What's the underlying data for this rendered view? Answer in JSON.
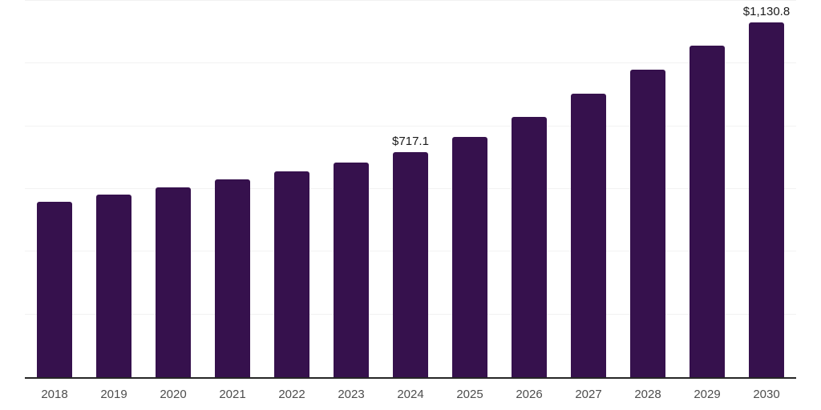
{
  "chart_data": {
    "type": "bar",
    "title": "",
    "xlabel": "",
    "ylabel": "",
    "categories": [
      "2018",
      "2019",
      "2020",
      "2021",
      "2022",
      "2023",
      "2024",
      "2025",
      "2026",
      "2027",
      "2028",
      "2029",
      "2030"
    ],
    "values": [
      558,
      581,
      605,
      630,
      656,
      684,
      717.1,
      765,
      831,
      903,
      981,
      1057,
      1130.8
    ],
    "data_labels": {
      "2024": "$717.1",
      "2030": "$1,130.8"
    },
    "ylim": [
      0,
      1200
    ],
    "gridline_step": 200,
    "grid": true,
    "y_axis_tick_labels_visible": false,
    "legend_position": "none"
  },
  "style": {
    "background": "#FFFFFF",
    "bar_color": "#36114D",
    "gridline_color": "#F2F2F2",
    "axis_line_color": "#262626",
    "x_label_color": "#4D4D4D",
    "data_label_color": "#1A1A1A"
  }
}
